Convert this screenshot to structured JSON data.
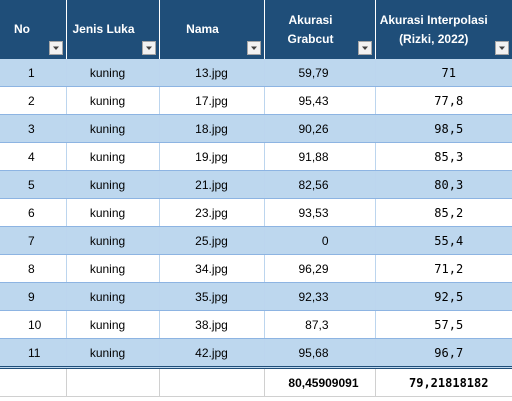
{
  "headers": {
    "no": "No",
    "jenis_luka": "Jenis Luka",
    "nama": "Nama",
    "akurasi_grabcut": "Akurasi Grabcut",
    "akurasi_interpolasi": "Akurasi Interpolasi\n(Rizki, 2022)"
  },
  "filter_icon": "dropdown-arrow-icon",
  "colors": {
    "header_bg": "#1f4e79",
    "band_bg": "#bdd7ee"
  },
  "rows": [
    {
      "no": "1",
      "jenis": "kuning",
      "nama": "13.jpg",
      "grabcut": "59,79",
      "interpolasi": "71"
    },
    {
      "no": "2",
      "jenis": "kuning",
      "nama": "17.jpg",
      "grabcut": "95,43",
      "interpolasi": "77,8"
    },
    {
      "no": "3",
      "jenis": "kuning",
      "nama": "18.jpg",
      "grabcut": "90,26",
      "interpolasi": "98,5"
    },
    {
      "no": "4",
      "jenis": "kuning",
      "nama": "19.jpg",
      "grabcut": "91,88",
      "interpolasi": "85,3"
    },
    {
      "no": "5",
      "jenis": "kuning",
      "nama": "21.jpg",
      "grabcut": "82,56",
      "interpolasi": "80,3"
    },
    {
      "no": "6",
      "jenis": "kuning",
      "nama": "23.jpg",
      "grabcut": "93,53",
      "interpolasi": "85,2"
    },
    {
      "no": "7",
      "jenis": "kuning",
      "nama": "25.jpg",
      "grabcut": "0",
      "interpolasi": "55,4"
    },
    {
      "no": "8",
      "jenis": "kuning",
      "nama": "34.jpg",
      "grabcut": "96,29",
      "interpolasi": "71,2"
    },
    {
      "no": "9",
      "jenis": "kuning",
      "nama": "35.jpg",
      "grabcut": "92,33",
      "interpolasi": "92,5"
    },
    {
      "no": "10",
      "jenis": "kuning",
      "nama": "38.jpg",
      "grabcut": "87,3",
      "interpolasi": "57,5"
    },
    {
      "no": "11",
      "jenis": "kuning",
      "nama": "42.jpg",
      "grabcut": "95,68",
      "interpolasi": "96,7"
    }
  ],
  "totals": {
    "grabcut": "80,45909091",
    "interpolasi": "79,21818182"
  }
}
